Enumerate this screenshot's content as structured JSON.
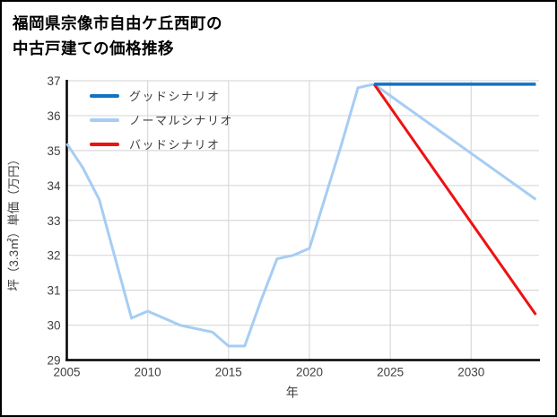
{
  "title": {
    "line1": "福岡県宗像市自由ケ丘西町の",
    "line2": "中古戸建ての価格推移"
  },
  "colors": {
    "good_scenario": "#1173c4",
    "normal_scenario": "#a6cdf4",
    "bad_scenario": "#ee1111",
    "gridline": "#d9d9d9",
    "axis_spine": "#000000",
    "tick_text": "#3f3f3f"
  },
  "chart_data": {
    "type": "line",
    "title": "福岡県宗像市自由ケ丘西町の中古戸建ての価格推移",
    "xlabel": "年",
    "ylabel": "坪（3.3㎡）単価（万円）",
    "xlim": [
      2005,
      2034.2
    ],
    "ylim": [
      29,
      37
    ],
    "xticks": [
      2005,
      2010,
      2015,
      2020,
      2025,
      2030
    ],
    "yticks": [
      29,
      30,
      31,
      32,
      33,
      34,
      35,
      36,
      37
    ],
    "grid": true,
    "legend_position": "upper-left-inside",
    "series": [
      {
        "name": "グッドシナリオ",
        "color": "#1173c4",
        "width": 3.5,
        "x": [
          2024,
          2034
        ],
        "y": [
          36.9,
          36.9
        ]
      },
      {
        "name": "ノーマルシナリオ",
        "color": "#a6cdf4",
        "width": 3,
        "x": [
          2005,
          2006,
          2007,
          2008,
          2009,
          2010,
          2011,
          2012,
          2013,
          2014,
          2015,
          2016,
          2017,
          2018,
          2019,
          2020,
          2021,
          2022,
          2023,
          2024,
          2034
        ],
        "y": [
          35.2,
          34.5,
          33.6,
          31.9,
          30.2,
          30.4,
          30.2,
          30.0,
          29.9,
          29.8,
          29.4,
          29.4,
          30.7,
          31.9,
          32.0,
          32.2,
          33.7,
          35.2,
          36.8,
          36.9,
          33.6
        ]
      },
      {
        "name": "バッドシナリオ",
        "color": "#ee1111",
        "width": 3,
        "x": [
          2024,
          2034
        ],
        "y": [
          36.9,
          30.3
        ]
      }
    ]
  }
}
